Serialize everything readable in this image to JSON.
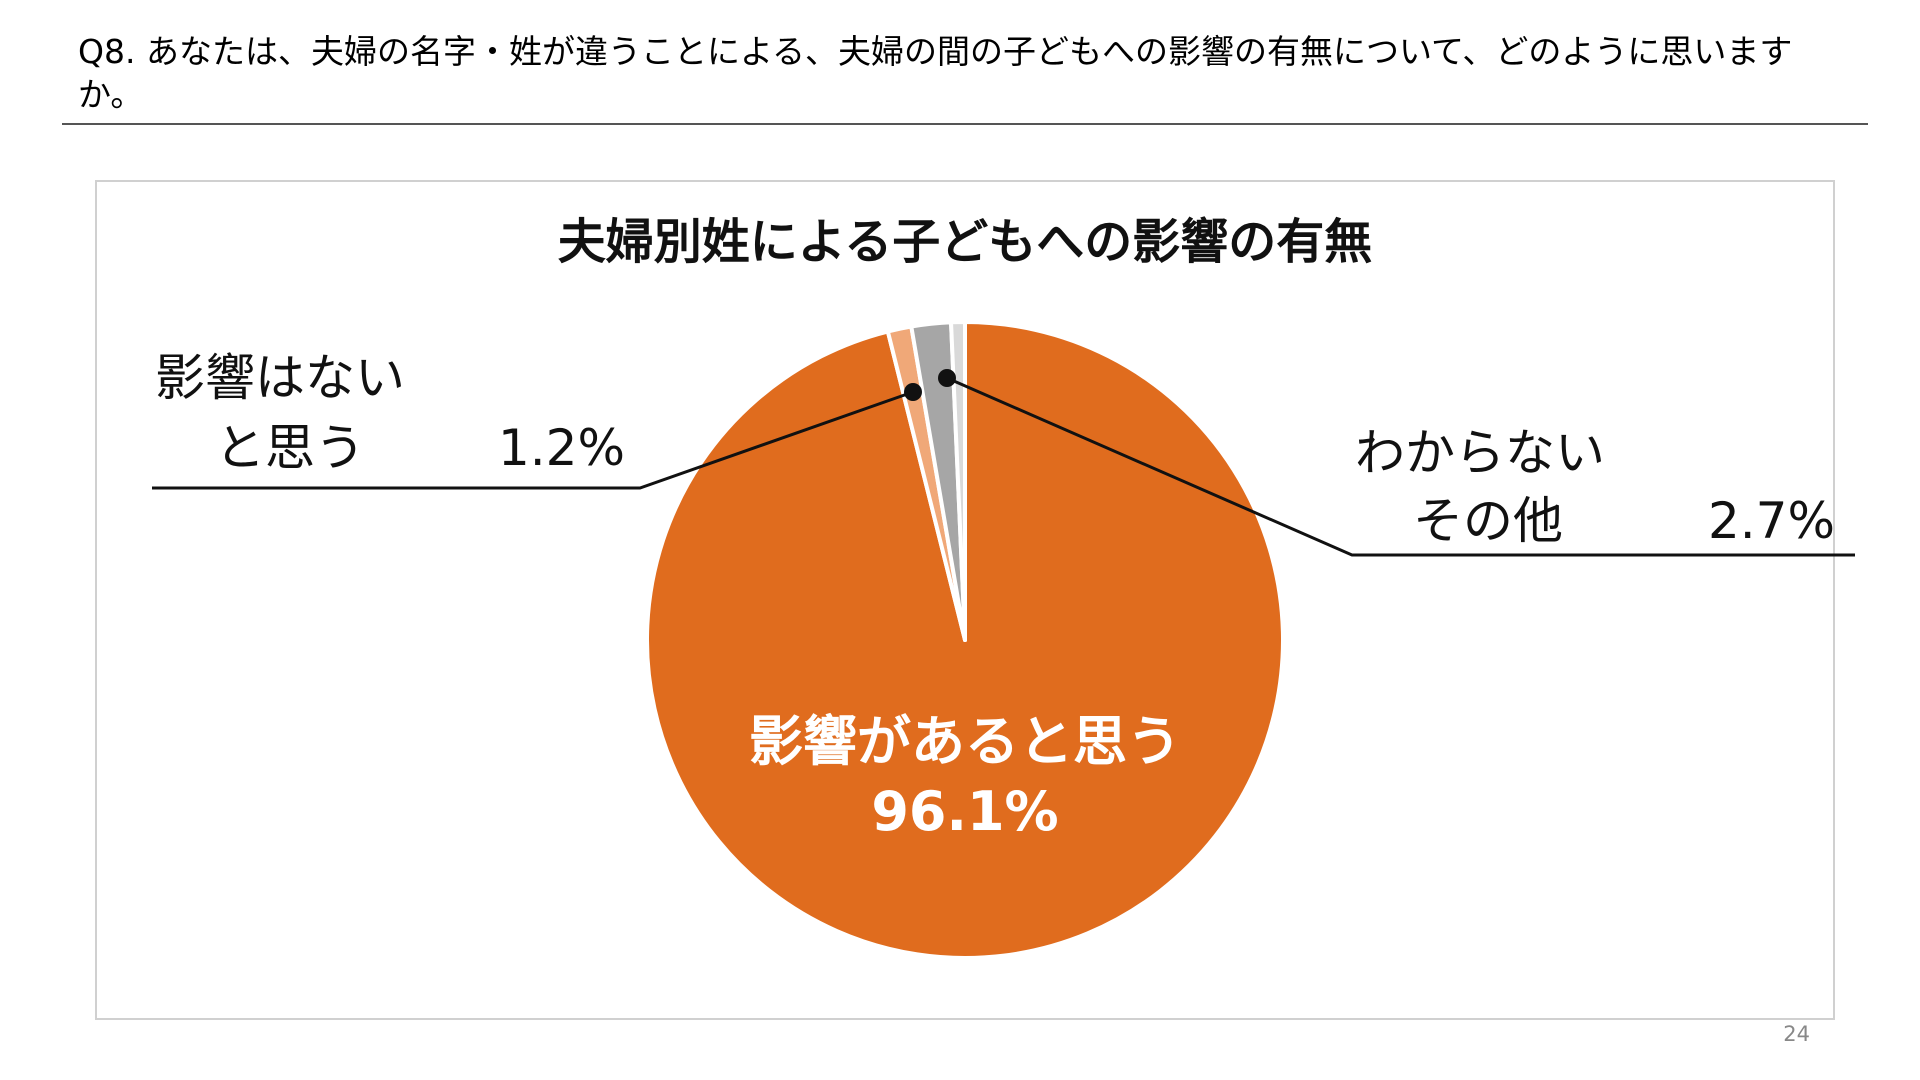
{
  "question": {
    "text": "Q8. あなたは、夫婦の名字・姓が違うことによる、夫婦の間の子どもへの影響の有無について、どのように思いますか。"
  },
  "page_number": "24",
  "colors": {
    "yes": "#E06C1E",
    "no": "#F0A878",
    "unknown": "#A6A6A6",
    "other": "#D9D9D9",
    "leader_line": "#111111",
    "frame": "#D0D0D0"
  },
  "chart_data": {
    "type": "pie",
    "title": "夫婦別姓による子どもへの影響の有無",
    "slices": [
      {
        "name": "影響があると思う",
        "value": 96.1,
        "color": "#E06C1E"
      },
      {
        "name": "影響はないと思う",
        "value": 1.2,
        "color": "#F0A878"
      },
      {
        "name": "わからない",
        "value": 2.0,
        "color": "#A6A6A6"
      },
      {
        "name": "その他",
        "value": 0.7,
        "color": "#D9D9D9"
      }
    ],
    "labels": {
      "inside": {
        "line1": "影響があると思う",
        "line2": "96.1%"
      },
      "left": {
        "line1": "影響はない",
        "line2": "と思う",
        "value": "1.2%"
      },
      "right": {
        "line1": "わからない",
        "line2": "その他",
        "value": "2.7%"
      }
    },
    "legend": "none"
  }
}
